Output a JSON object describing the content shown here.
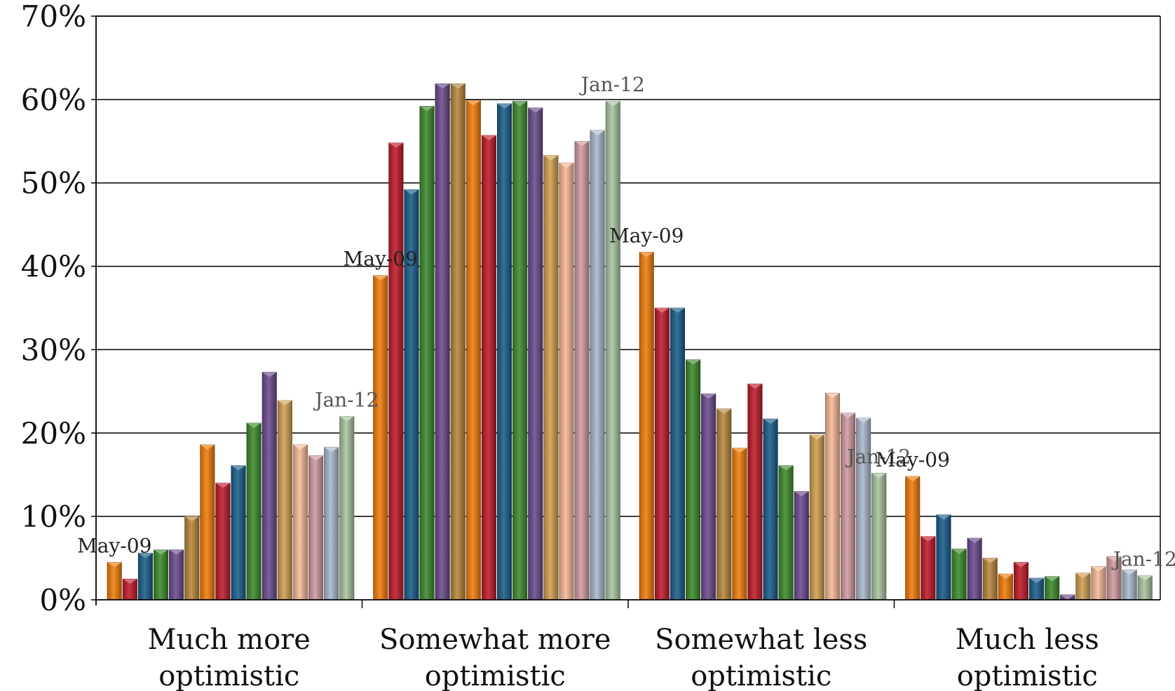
{
  "chart_data": {
    "type": "bar",
    "categories": [
      [
        "Much more",
        "optimistic"
      ],
      [
        "Somewhat more",
        "optimistic"
      ],
      [
        "Somewhat less",
        "optimistic"
      ],
      [
        "Much less",
        "optimistic"
      ]
    ],
    "series_colors": [
      "#f07d0b",
      "#bf1b2b",
      "#1a5e8a",
      "#3d8a2c",
      "#6a4a8c",
      "#b8863d",
      "#f07d0b",
      "#bf1b2b",
      "#1a5e8a",
      "#3d8a2c",
      "#6a4a8c",
      "#cf9f50",
      "#f7b899",
      "#d09aa0",
      "#aab8cc",
      "#a8c4a0"
    ],
    "values": [
      [
        4.5,
        2.5,
        5.6,
        6.0,
        6.0,
        10.0,
        18.6,
        14.0,
        16.1,
        21.2,
        27.3,
        23.9,
        18.6,
        17.3,
        18.3,
        22.0
      ],
      [
        38.9,
        54.8,
        49.2,
        59.2,
        61.9,
        61.9,
        59.9,
        55.7,
        59.5,
        59.8,
        59.0,
        53.3,
        52.4,
        55.0,
        56.3,
        59.8
      ],
      [
        41.7,
        35.0,
        35.0,
        28.8,
        24.7,
        22.9,
        18.2,
        25.9,
        21.7,
        16.1,
        13.0,
        19.8,
        24.8,
        22.4,
        21.8,
        15.2
      ],
      [
        14.8,
        7.6,
        10.2,
        6.1,
        7.4,
        5.0,
        3.1,
        4.5,
        2.6,
        2.8,
        0.6,
        3.2,
        4.0,
        5.2,
        3.6,
        2.9
      ]
    ],
    "annotations": [
      {
        "category": 0,
        "bar": 0,
        "text": "May-09",
        "color": "#222222"
      },
      {
        "category": 0,
        "bar": 15,
        "text": "Jan-12",
        "color": "#555555"
      },
      {
        "category": 1,
        "bar": 0,
        "text": "May-09",
        "color": "#222222"
      },
      {
        "category": 1,
        "bar": 15,
        "text": "Jan-12",
        "color": "#555555"
      },
      {
        "category": 2,
        "bar": 0,
        "text": "May-09",
        "color": "#222222"
      },
      {
        "category": 2,
        "bar": 15,
        "text": "Jan-12",
        "color": "#555555"
      },
      {
        "category": 3,
        "bar": 0,
        "text": "May-09",
        "color": "#222222"
      },
      {
        "category": 3,
        "bar": 15,
        "text": "Jan-12",
        "color": "#555555"
      }
    ],
    "y_ticks": [
      "0%",
      "10%",
      "20%",
      "30%",
      "40%",
      "50%",
      "60%",
      "70%"
    ],
    "ylim": [
      0,
      70
    ],
    "grid": true,
    "legend": "none"
  }
}
